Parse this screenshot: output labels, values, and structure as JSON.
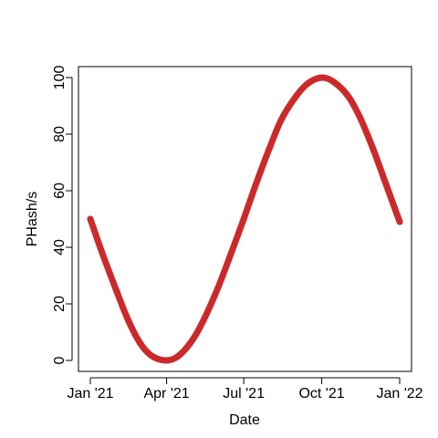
{
  "chart_data": {
    "type": "line",
    "title": "",
    "xlabel": "Date",
    "ylabel": "PHash/s",
    "x_axis_kind": "date",
    "xlim": [
      "2021-01-01",
      "2022-01-01"
    ],
    "ylim": [
      -3,
      103
    ],
    "x_ticks": [
      {
        "value": "2021-01-01",
        "label": "Jan '21"
      },
      {
        "value": "2021-04-01",
        "label": "Apr '21"
      },
      {
        "value": "2021-07-01",
        "label": "Jul '21"
      },
      {
        "value": "2021-10-01",
        "label": "Oct '21"
      },
      {
        "value": "2022-01-01",
        "label": "Jan '22"
      }
    ],
    "y_ticks": [
      {
        "value": 0,
        "label": "0"
      },
      {
        "value": 20,
        "label": "20"
      },
      {
        "value": 40,
        "label": "40"
      },
      {
        "value": 60,
        "label": "60"
      },
      {
        "value": 80,
        "label": "80"
      },
      {
        "value": 100,
        "label": "100"
      }
    ],
    "grid": false,
    "legend": "none",
    "series": [
      {
        "color": "#cc2a2a",
        "x": [
          "2021-01-01",
          "2021-01-15",
          "2021-02-01",
          "2021-02-15",
          "2021-03-01",
          "2021-03-15",
          "2021-04-01",
          "2021-04-15",
          "2021-05-01",
          "2021-05-15",
          "2021-06-01",
          "2021-06-15",
          "2021-07-01",
          "2021-07-15",
          "2021-08-01",
          "2021-08-15",
          "2021-09-01",
          "2021-09-15",
          "2021-10-01",
          "2021-10-15",
          "2021-11-01",
          "2021-11-15",
          "2021-12-01",
          "2021-12-15",
          "2022-01-01"
        ],
        "y": [
          50.0,
          38.0,
          24.5,
          14.0,
          6.0,
          1.5,
          0.0,
          1.6,
          7.0,
          14.5,
          26.0,
          37.0,
          50.0,
          62.0,
          75.5,
          85.5,
          93.5,
          98.0,
          100.0,
          98.5,
          93.5,
          86.0,
          74.5,
          63.0,
          49.0
        ]
      }
    ]
  }
}
